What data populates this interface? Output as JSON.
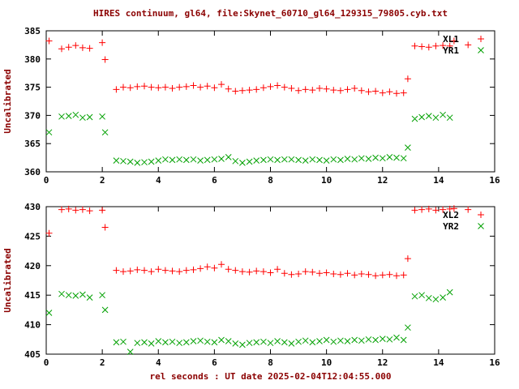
{
  "chart_data": {
    "type": "scatter",
    "title": "HIRES continuum, gl64, file:Skynet_60710_gl64_129315_79805.cyb.txt",
    "xlabel": "rel seconds : UT date 2025-02-04T12:04:55.000",
    "colors": {
      "title": "#8b0000",
      "axis_labels": "#8b0000",
      "tick_text": "#000000",
      "border": "#000000",
      "red_series": "#ff0000",
      "green_series": "#00a000"
    },
    "legend_position": "top-right-inside",
    "grid": false,
    "plots": [
      {
        "ylabel": "Uncalibrated",
        "xlim": [
          0,
          16
        ],
        "ylim": [
          360,
          385
        ],
        "xticks": [
          0,
          2,
          4,
          6,
          8,
          10,
          12,
          14,
          16
        ],
        "yticks": [
          360,
          365,
          370,
          375,
          380,
          385
        ],
        "series": [
          {
            "name": "XL1",
            "marker": "plus",
            "color": "#ff0000",
            "x": [
              0.1,
              0.55,
              0.8,
              1.05,
              1.3,
              1.55,
              2.0,
              2.1,
              2.5,
              2.75,
              3.0,
              3.25,
              3.5,
              3.75,
              4.0,
              4.25,
              4.5,
              4.75,
              5.0,
              5.25,
              5.5,
              5.75,
              6.0,
              6.25,
              6.5,
              6.75,
              7.0,
              7.25,
              7.5,
              7.75,
              8.0,
              8.25,
              8.5,
              8.75,
              9.0,
              9.25,
              9.5,
              9.75,
              10.0,
              10.25,
              10.5,
              10.75,
              11.0,
              11.25,
              11.5,
              11.75,
              12.0,
              12.25,
              12.5,
              12.75,
              12.9,
              13.15,
              13.4,
              13.65,
              13.9,
              14.15,
              14.4,
              14.55,
              15.05
            ],
            "y": [
              383.2,
              381.8,
              382.1,
              382.4,
              382.0,
              381.9,
              382.9,
              379.9,
              374.6,
              375.0,
              374.9,
              375.1,
              375.2,
              375.0,
              374.9,
              375.0,
              374.8,
              375.0,
              375.1,
              375.3,
              375.0,
              375.2,
              374.9,
              375.5,
              374.7,
              374.3,
              374.4,
              374.5,
              374.6,
              374.9,
              375.1,
              375.3,
              375.0,
              374.8,
              374.4,
              374.6,
              374.5,
              374.8,
              374.7,
              374.5,
              374.4,
              374.6,
              374.8,
              374.4,
              374.2,
              374.3,
              374.0,
              374.2,
              373.9,
              374.0,
              376.5,
              382.3,
              382.2,
              382.1,
              382.3,
              382.4,
              382.3,
              383.2,
              382.5
            ]
          },
          {
            "name": "YR1",
            "marker": "cross",
            "color": "#00a000",
            "x": [
              0.1,
              0.55,
              0.8,
              1.05,
              1.3,
              1.55,
              2.0,
              2.1,
              2.5,
              2.75,
              3.0,
              3.25,
              3.5,
              3.75,
              4.0,
              4.25,
              4.5,
              4.75,
              5.0,
              5.25,
              5.5,
              5.75,
              6.0,
              6.25,
              6.5,
              6.75,
              7.0,
              7.25,
              7.5,
              7.75,
              8.0,
              8.25,
              8.5,
              8.75,
              9.0,
              9.25,
              9.5,
              9.75,
              10.0,
              10.25,
              10.5,
              10.75,
              11.0,
              11.25,
              11.5,
              11.75,
              12.0,
              12.25,
              12.5,
              12.75,
              12.9,
              13.15,
              13.4,
              13.65,
              13.9,
              14.15,
              14.4
            ],
            "y": [
              367.0,
              369.8,
              369.9,
              370.1,
              369.6,
              369.7,
              369.8,
              367.0,
              362.0,
              361.9,
              361.8,
              361.6,
              361.7,
              361.8,
              362.0,
              362.2,
              362.1,
              362.2,
              362.1,
              362.2,
              362.0,
              362.1,
              362.2,
              362.3,
              362.6,
              361.9,
              361.6,
              361.8,
              362.0,
              362.1,
              362.2,
              362.1,
              362.2,
              362.2,
              362.1,
              362.0,
              362.2,
              362.1,
              362.0,
              362.2,
              362.1,
              362.3,
              362.2,
              362.4,
              362.3,
              362.5,
              362.4,
              362.6,
              362.5,
              362.4,
              364.3,
              369.4,
              369.7,
              369.9,
              369.6,
              370.1,
              369.6
            ]
          }
        ]
      },
      {
        "ylabel": "Uncalibrated",
        "xlim": [
          0,
          16
        ],
        "ylim": [
          405,
          430
        ],
        "xticks": [
          0,
          2,
          4,
          6,
          8,
          10,
          12,
          14,
          16
        ],
        "yticks": [
          405,
          410,
          415,
          420,
          425,
          430
        ],
        "series": [
          {
            "name": "XL2",
            "marker": "plus",
            "color": "#ff0000",
            "x": [
              0.1,
              0.55,
              0.8,
              1.05,
              1.3,
              1.55,
              2.0,
              2.1,
              2.5,
              2.75,
              3.0,
              3.25,
              3.5,
              3.75,
              4.0,
              4.25,
              4.5,
              4.75,
              5.0,
              5.25,
              5.5,
              5.75,
              6.0,
              6.25,
              6.5,
              6.75,
              7.0,
              7.25,
              7.5,
              7.75,
              8.0,
              8.25,
              8.5,
              8.75,
              9.0,
              9.25,
              9.5,
              9.75,
              10.0,
              10.25,
              10.5,
              10.75,
              11.0,
              11.25,
              11.5,
              11.75,
              12.0,
              12.25,
              12.5,
              12.75,
              12.9,
              13.15,
              13.4,
              13.65,
              13.9,
              14.15,
              14.4,
              14.55,
              15.05
            ],
            "y": [
              425.5,
              429.5,
              429.6,
              429.4,
              429.5,
              429.3,
              429.4,
              426.5,
              419.2,
              419.0,
              419.1,
              419.3,
              419.2,
              419.0,
              419.4,
              419.2,
              419.1,
              419.0,
              419.2,
              419.3,
              419.5,
              419.8,
              419.6,
              420.2,
              419.4,
              419.2,
              419.0,
              418.9,
              419.1,
              419.0,
              418.8,
              419.4,
              418.7,
              418.5,
              418.6,
              419.0,
              418.9,
              418.7,
              418.8,
              418.6,
              418.5,
              418.7,
              418.4,
              418.6,
              418.5,
              418.3,
              418.4,
              418.5,
              418.3,
              418.4,
              421.2,
              429.4,
              429.5,
              429.6,
              429.4,
              429.5,
              429.6,
              429.7,
              429.5
            ]
          },
          {
            "name": "YR2",
            "marker": "cross",
            "color": "#00a000",
            "x": [
              0.1,
              0.55,
              0.8,
              1.05,
              1.3,
              1.55,
              2.0,
              2.1,
              2.5,
              2.75,
              3.0,
              3.25,
              3.5,
              3.75,
              4.0,
              4.25,
              4.5,
              4.75,
              5.0,
              5.25,
              5.5,
              5.75,
              6.0,
              6.25,
              6.5,
              6.75,
              7.0,
              7.25,
              7.5,
              7.75,
              8.0,
              8.25,
              8.5,
              8.75,
              9.0,
              9.25,
              9.5,
              9.75,
              10.0,
              10.25,
              10.5,
              10.75,
              11.0,
              11.25,
              11.5,
              11.75,
              12.0,
              12.25,
              12.5,
              12.75,
              12.9,
              13.15,
              13.4,
              13.65,
              13.9,
              14.15,
              14.4
            ],
            "y": [
              412.0,
              415.2,
              415.0,
              414.9,
              415.1,
              414.6,
              415.0,
              412.5,
              407.0,
              407.1,
              405.4,
              406.9,
              407.0,
              406.8,
              407.2,
              407.0,
              407.1,
              406.9,
              407.0,
              407.2,
              407.3,
              407.1,
              407.0,
              407.4,
              407.2,
              406.8,
              406.6,
              406.9,
              407.0,
              407.1,
              406.9,
              407.2,
              407.0,
              406.8,
              407.1,
              407.3,
              407.0,
              407.2,
              407.4,
              407.1,
              407.3,
              407.2,
              407.4,
              407.3,
              407.5,
              407.4,
              407.6,
              407.5,
              407.8,
              407.4,
              409.5,
              414.8,
              415.0,
              414.5,
              414.3,
              414.6,
              415.5
            ]
          }
        ]
      }
    ]
  }
}
